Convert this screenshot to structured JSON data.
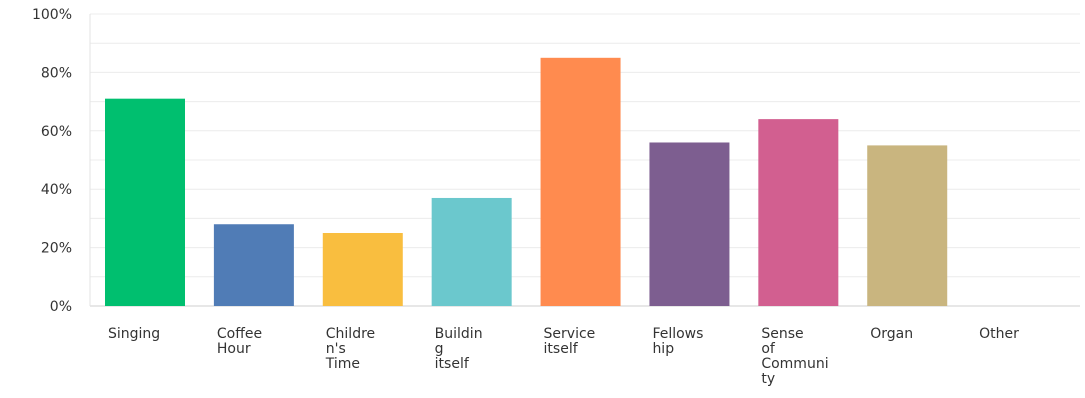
{
  "chart_data": {
    "type": "bar",
    "categories": [
      "Singing",
      "Coffee Hour",
      "Children's Time",
      "Building itself",
      "Service itself",
      "Fellowship",
      "Sense of Community",
      "Organ",
      "Other"
    ],
    "category_lines": [
      [
        "Singing"
      ],
      [
        "Coffee",
        "Hour"
      ],
      [
        "Childre",
        "n's",
        "Time"
      ],
      [
        "Buildin",
        "g",
        "itself"
      ],
      [
        "Service",
        "itself"
      ],
      [
        "Fellows",
        "hip"
      ],
      [
        "Sense",
        "of",
        "Communi",
        "ty"
      ],
      [
        "Organ"
      ],
      [
        "Other"
      ]
    ],
    "values": [
      71,
      28,
      25,
      37,
      85,
      56,
      64,
      55,
      0
    ],
    "colors": [
      "#00BF6F",
      "#507CB6",
      "#F9BE3F",
      "#6BC8CD",
      "#FF8B4F",
      "#7D5E90",
      "#D25F90",
      "#C9B57F",
      "#999999"
    ],
    "y_ticks": [
      "0%",
      "20%",
      "40%",
      "60%",
      "80%",
      "100%"
    ],
    "ylim": [
      0,
      100
    ],
    "grid": true,
    "legend": "none"
  }
}
